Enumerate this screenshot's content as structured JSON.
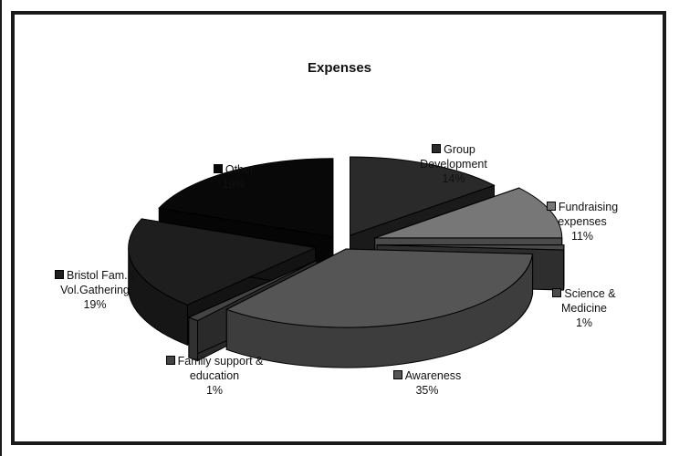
{
  "chart_data": {
    "type": "pie",
    "title": "Expenses",
    "slices": [
      {
        "label": "Group Development",
        "label_lines": [
          "Group",
          "Development"
        ],
        "value": 14,
        "value_label": "14%",
        "color": "#2a2a2a"
      },
      {
        "label": "Fundraising expenses",
        "label_lines": [
          "Fundraising",
          "expenses"
        ],
        "value": 11,
        "value_label": "11%",
        "color": "#777777"
      },
      {
        "label": "Science & Medicine",
        "label_lines": [
          "Science &",
          "Medicine"
        ],
        "value": 1,
        "value_label": "1%",
        "color": "#4a4a4a"
      },
      {
        "label": "Awareness",
        "label_lines": [
          "Awareness"
        ],
        "value": 35,
        "value_label": "35%",
        "color": "#555555"
      },
      {
        "label": "Family support & education",
        "label_lines": [
          "Family support &",
          "education"
        ],
        "value": 1,
        "value_label": "1%",
        "color": "#444444"
      },
      {
        "label": "Bristol Fam.& Vol.Gathering",
        "label_lines": [
          "Bristol Fam.&",
          "Vol.Gathering"
        ],
        "value": 19,
        "value_label": "19%",
        "color": "#1e1e1e"
      },
      {
        "label": "Other",
        "label_lines": [
          "Other"
        ],
        "value": 19,
        "value_label": "19%",
        "color": "#080808"
      }
    ],
    "legend": "labels-beside-slices",
    "style": "3d-exploded"
  }
}
